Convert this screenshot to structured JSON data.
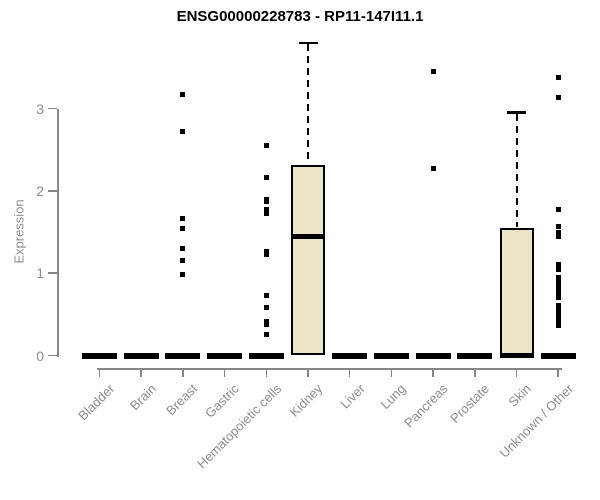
{
  "chart_data": {
    "type": "boxplot",
    "title": "ENSG00000228783 - RP11-147I11.1",
    "ylabel": "Expression",
    "xlabel": "",
    "yticks": [
      0,
      1,
      2,
      3
    ],
    "ylim": [
      0,
      3.9
    ],
    "grid": false,
    "legend": false,
    "categories": [
      "Bladder",
      "Brain",
      "Breast",
      "Gastric",
      "Hematopoietic cells",
      "Kidney",
      "Liver",
      "Lung",
      "Pancreas",
      "Prostate",
      "Skin",
      "Unknown / Other"
    ],
    "boxes": [
      {
        "category": "Bladder",
        "min": 0,
        "q1": 0,
        "median": 0,
        "q3": 0,
        "max": 0,
        "outliers": []
      },
      {
        "category": "Brain",
        "min": 0,
        "q1": 0,
        "median": 0,
        "q3": 0,
        "max": 0,
        "outliers": []
      },
      {
        "category": "Breast",
        "min": 0,
        "q1": 0,
        "median": 0,
        "q3": 0,
        "max": 0,
        "outliers": [
          3.17,
          2.72,
          1.66,
          1.54,
          1.3,
          1.16,
          0.99
        ]
      },
      {
        "category": "Gastric",
        "min": 0,
        "q1": 0,
        "median": 0,
        "q3": 0,
        "max": 0,
        "outliers": []
      },
      {
        "category": "Hematopoietic cells",
        "min": 0,
        "q1": 0,
        "median": 0,
        "q3": 0,
        "max": 0,
        "outliers": [
          2.55,
          2.16,
          1.9,
          1.87,
          1.77,
          1.73,
          1.26,
          1.23,
          0.73,
          0.58,
          0.41,
          0.38,
          0.26
        ]
      },
      {
        "category": "Kidney",
        "min": 0,
        "q1": 0,
        "median": 1.44,
        "q3": 2.31,
        "max": 3.8,
        "outliers": []
      },
      {
        "category": "Liver",
        "min": 0,
        "q1": 0,
        "median": 0,
        "q3": 0,
        "max": 0,
        "outliers": []
      },
      {
        "category": "Lung",
        "min": 0,
        "q1": 0,
        "median": 0,
        "q3": 0,
        "max": 0,
        "outliers": []
      },
      {
        "category": "Pancreas",
        "min": 0,
        "q1": 0,
        "median": 0,
        "q3": 0,
        "max": 0,
        "outliers": [
          3.45,
          2.27
        ]
      },
      {
        "category": "Prostate",
        "min": 0,
        "q1": 0,
        "median": 0,
        "q3": 0,
        "max": 0,
        "outliers": []
      },
      {
        "category": "Skin",
        "min": 0,
        "q1": 0,
        "median": 0,
        "q3": 1.55,
        "max": 2.95,
        "outliers": []
      },
      {
        "category": "Unknown / Other",
        "min": 0,
        "q1": 0,
        "median": 0,
        "q3": 0,
        "max": 0,
        "outliers": [
          3.38,
          3.14,
          1.78,
          1.57,
          1.5,
          1.44,
          1.1,
          1.04,
          0.95,
          0.89,
          0.83,
          0.77,
          0.71,
          0.61,
          0.55,
          0.49,
          0.43,
          0.37
        ]
      }
    ],
    "colors": {
      "box_fill": "#ECE4C6",
      "box_stroke": "#000000",
      "median": "#000000",
      "whisker": "#000000",
      "outlier": "#000000",
      "axis": "#878787",
      "tick_label": "#8c8c8c",
      "title": "#000000",
      "background": "#ffffff"
    }
  }
}
